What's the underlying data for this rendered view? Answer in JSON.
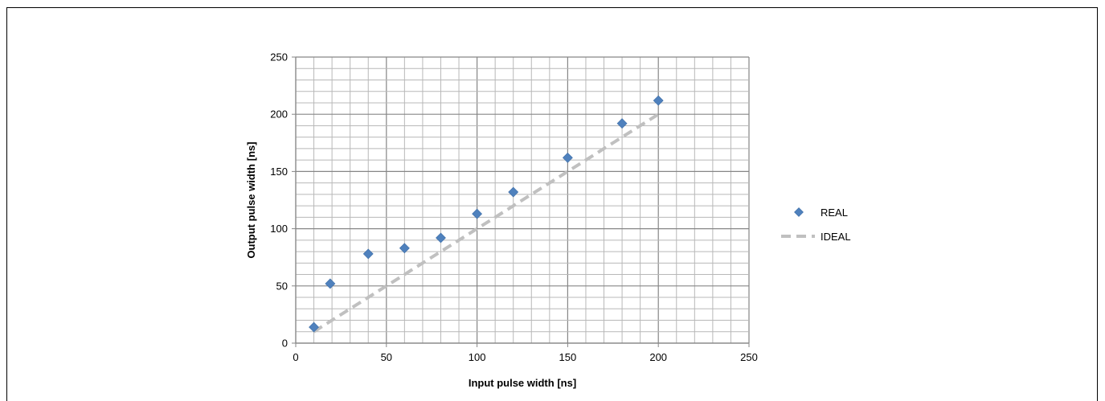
{
  "chart_data": {
    "type": "scatter",
    "title": "",
    "xlabel": "Input pulse width [ns]",
    "ylabel": "Output pulse width [ns]",
    "xlim": [
      0,
      250
    ],
    "ylim": [
      0,
      250
    ],
    "xticks": [
      "0",
      "50",
      "100",
      "150",
      "200",
      "250"
    ],
    "yticks": [
      "0",
      "50",
      "100",
      "150",
      "200",
      "250"
    ],
    "grid": true,
    "legend_position": "right",
    "series": [
      {
        "name": "REAL",
        "kind": "scatter",
        "marker": "diamond",
        "color": "#4f81bd",
        "x": [
          10,
          19,
          40,
          60,
          80,
          100,
          120,
          150,
          180,
          200
        ],
        "y": [
          14,
          52,
          78,
          83,
          92,
          113,
          132,
          162,
          192,
          212
        ]
      },
      {
        "name": "IDEAL",
        "kind": "line",
        "style": "dashed",
        "color": "#c0c0c0",
        "x": [
          10,
          200
        ],
        "y": [
          10,
          200
        ]
      }
    ]
  }
}
